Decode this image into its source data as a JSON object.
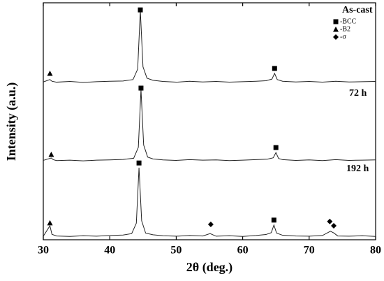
{
  "chart_data": {
    "type": "line",
    "xlabel": "2θ (deg.)",
    "ylabel": "Intensity (a.u.)",
    "xlim": [
      30,
      80
    ],
    "xticks": [
      30,
      40,
      50,
      60,
      70,
      80
    ],
    "ylim": [
      0,
      100
    ],
    "color": "#222222",
    "series": [
      {
        "name": "As-cast",
        "x": [
          30,
          31,
          31.3,
          32,
          34,
          36,
          38,
          40,
          42,
          43.5,
          44.2,
          44.6,
          45,
          45.6,
          46.5,
          48,
          50,
          52,
          54,
          56,
          58,
          60,
          62,
          63.5,
          64.4,
          64.8,
          65.2,
          66,
          68,
          70,
          72,
          74,
          76,
          78,
          80
        ],
        "values": [
          66.6,
          67.6,
          66.9,
          66.5,
          66.8,
          66.4,
          66.7,
          66.9,
          67.0,
          67.6,
          72,
          96.8,
          73,
          68.2,
          67.3,
          66.8,
          66.5,
          66.9,
          66.6,
          66.8,
          66.5,
          66.7,
          66.9,
          67.1,
          67.8,
          70.2,
          67.6,
          66.9,
          66.6,
          66.8,
          66.5,
          66.9,
          66.6,
          66.7,
          66.8
        ]
      },
      {
        "name": "72 h",
        "x": [
          30,
          31.2,
          31.5,
          32,
          34,
          36,
          38,
          40,
          42,
          43.6,
          44.3,
          44.7,
          45.1,
          45.7,
          46.5,
          48,
          50,
          52,
          54,
          56,
          58,
          60,
          62,
          63.7,
          64.6,
          65,
          65.4,
          66,
          68,
          70,
          72,
          74,
          76,
          78,
          80
        ],
        "values": [
          33.5,
          34.5,
          33.8,
          33.4,
          33.6,
          33.3,
          33.6,
          33.7,
          33.9,
          34.4,
          39,
          63.4,
          40,
          34.9,
          34.1,
          33.7,
          33.5,
          33.8,
          33.6,
          33.7,
          33.4,
          33.6,
          33.8,
          34.0,
          34.6,
          36.8,
          34.3,
          33.8,
          33.5,
          33.7,
          33.4,
          33.8,
          33.5,
          33.6,
          33.7
        ]
      },
      {
        "name": "192 h",
        "x": [
          30,
          31,
          31.3,
          32,
          34,
          36,
          38,
          40,
          42,
          43.3,
          44,
          44.4,
          44.8,
          45.4,
          46.5,
          48,
          50,
          52,
          54,
          55.1,
          56,
          58,
          60,
          62,
          63.5,
          64.3,
          64.7,
          65.1,
          66,
          68,
          70,
          72,
          73.2,
          73.7,
          74.3,
          76,
          78,
          80
        ],
        "values": [
          1.5,
          5.9,
          2.3,
          1.6,
          1.4,
          1.7,
          1.5,
          1.8,
          2.0,
          2.6,
          7,
          30.4,
          8,
          2.8,
          2.1,
          1.7,
          1.5,
          1.8,
          1.6,
          2.6,
          1.5,
          1.7,
          1.4,
          1.8,
          2.2,
          3,
          6.2,
          2.8,
          1.9,
          1.6,
          1.5,
          1.8,
          3.6,
          2.9,
          1.6,
          1.5,
          1.7,
          1.4
        ]
      }
    ],
    "markers": [
      {
        "symbol": "triangle",
        "x": 31,
        "y": 70.2
      },
      {
        "symbol": "square",
        "x": 44.6,
        "y": 97
      },
      {
        "symbol": "square",
        "x": 64.8,
        "y": 72.3
      },
      {
        "symbol": "triangle",
        "x": 31.2,
        "y": 36
      },
      {
        "symbol": "square",
        "x": 44.7,
        "y": 64
      },
      {
        "symbol": "square",
        "x": 65,
        "y": 38.9
      },
      {
        "symbol": "triangle",
        "x": 31,
        "y": 7.1
      },
      {
        "symbol": "square",
        "x": 44.4,
        "y": 32.4
      },
      {
        "symbol": "diamond",
        "x": 55.2,
        "y": 6.5
      },
      {
        "symbol": "square",
        "x": 64.7,
        "y": 8.3
      },
      {
        "symbol": "diamond",
        "x": 73.1,
        "y": 7.7
      },
      {
        "symbol": "diamond",
        "x": 73.7,
        "y": 5.9
      }
    ],
    "legend": [
      {
        "symbol": "square",
        "label": "-BCC"
      },
      {
        "symbol": "triangle",
        "label": "-B2"
      },
      {
        "symbol": "diamond",
        "label": "-σ"
      }
    ]
  }
}
